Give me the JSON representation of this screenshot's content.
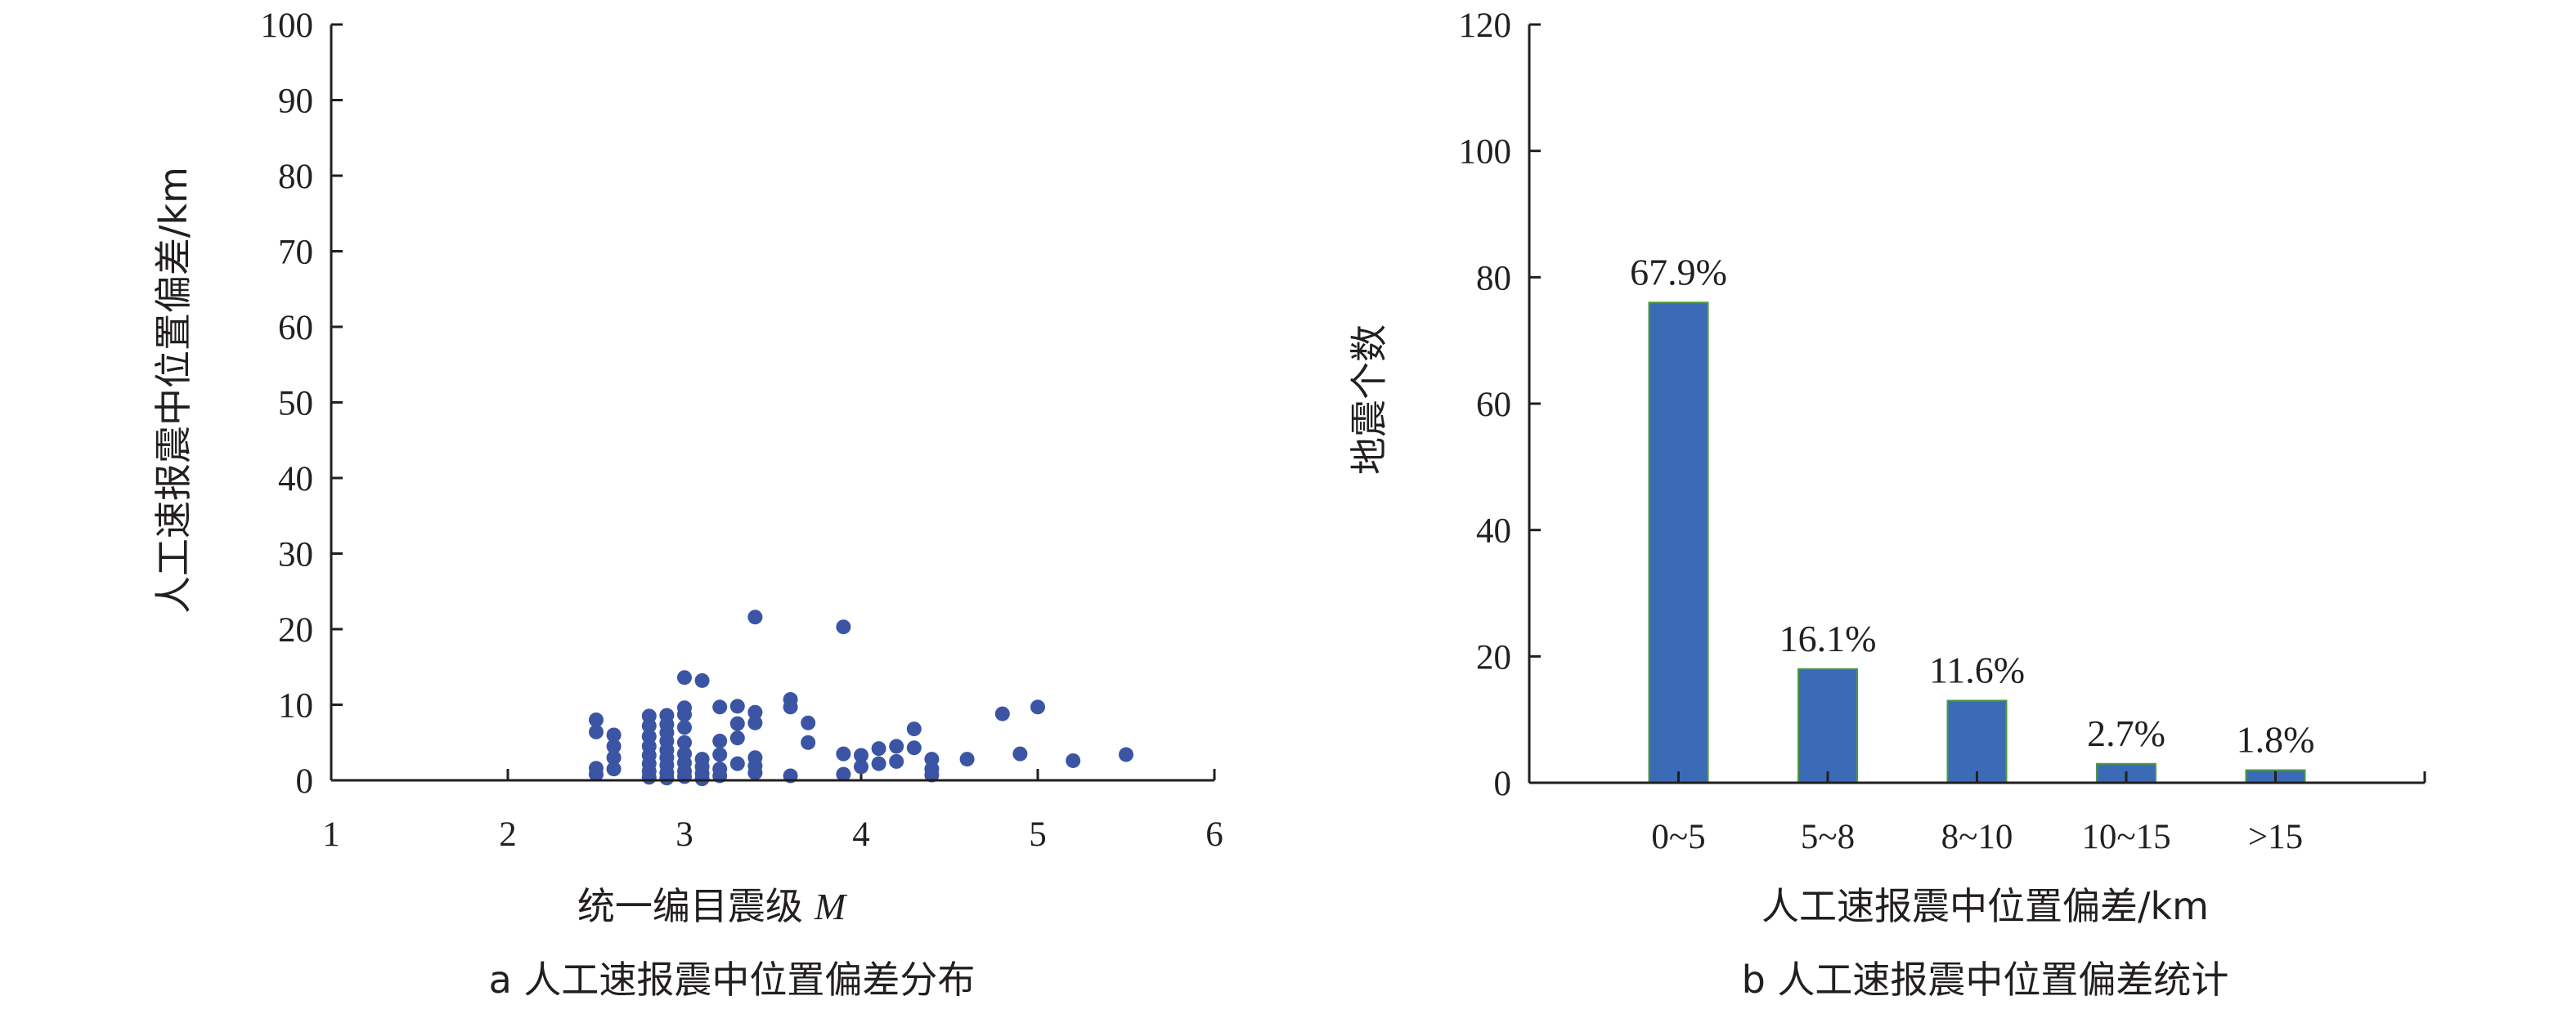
{
  "colors": {
    "axis": "#231f20",
    "point": "#3b55a4",
    "bar": "#3b6bb6",
    "bar_edge": "#4e9a3c"
  },
  "chart_data": [
    {
      "type": "scatter",
      "title": "",
      "caption": "a 人工速报震中位置偏差分布",
      "xlabel": "统一编目震级",
      "xlabel_var": "M",
      "ylabel": "人工速报震中位置偏差/km",
      "xlim": [
        1,
        6
      ],
      "ylim": [
        0,
        100
      ],
      "xticks": [
        "1",
        "2",
        "3",
        "4",
        "5",
        "6"
      ],
      "yticks": [
        "0",
        "10",
        "20",
        "30",
        "40",
        "50",
        "60",
        "70",
        "80",
        "90",
        "100"
      ],
      "grid": false,
      "points": [
        {
          "x": 2.5,
          "y": 8.0
        },
        {
          "x": 2.5,
          "y": 6.4
        },
        {
          "x": 2.5,
          "y": 1.6
        },
        {
          "x": 2.5,
          "y": 0.8
        },
        {
          "x": 2.6,
          "y": 6.0
        },
        {
          "x": 2.6,
          "y": 4.5
        },
        {
          "x": 2.6,
          "y": 3.0
        },
        {
          "x": 2.6,
          "y": 1.5
        },
        {
          "x": 2.8,
          "y": 8.5
        },
        {
          "x": 2.8,
          "y": 7.2
        },
        {
          "x": 2.8,
          "y": 5.8
        },
        {
          "x": 2.8,
          "y": 4.5
        },
        {
          "x": 2.8,
          "y": 3.3
        },
        {
          "x": 2.8,
          "y": 2.2
        },
        {
          "x": 2.8,
          "y": 1.2
        },
        {
          "x": 2.8,
          "y": 0.4
        },
        {
          "x": 2.9,
          "y": 8.6
        },
        {
          "x": 2.9,
          "y": 7.4
        },
        {
          "x": 2.9,
          "y": 6.3
        },
        {
          "x": 2.9,
          "y": 5.2
        },
        {
          "x": 2.9,
          "y": 4.0
        },
        {
          "x": 2.9,
          "y": 3.0
        },
        {
          "x": 2.9,
          "y": 2.0
        },
        {
          "x": 2.9,
          "y": 1.0
        },
        {
          "x": 2.9,
          "y": 0.3
        },
        {
          "x": 3.0,
          "y": 13.6
        },
        {
          "x": 3.0,
          "y": 9.6
        },
        {
          "x": 3.0,
          "y": 8.7
        },
        {
          "x": 3.0,
          "y": 7.0
        },
        {
          "x": 3.0,
          "y": 5.0
        },
        {
          "x": 3.0,
          "y": 3.5
        },
        {
          "x": 3.0,
          "y": 2.3
        },
        {
          "x": 3.0,
          "y": 1.2
        },
        {
          "x": 3.0,
          "y": 0.5
        },
        {
          "x": 3.1,
          "y": 13.2
        },
        {
          "x": 3.1,
          "y": 2.8
        },
        {
          "x": 3.1,
          "y": 1.8
        },
        {
          "x": 3.1,
          "y": 0.9
        },
        {
          "x": 3.1,
          "y": 0.2
        },
        {
          "x": 3.2,
          "y": 9.7
        },
        {
          "x": 3.2,
          "y": 5.2
        },
        {
          "x": 3.2,
          "y": 3.4
        },
        {
          "x": 3.2,
          "y": 1.5
        },
        {
          "x": 3.2,
          "y": 0.6
        },
        {
          "x": 3.3,
          "y": 9.8
        },
        {
          "x": 3.3,
          "y": 7.5
        },
        {
          "x": 3.3,
          "y": 5.6
        },
        {
          "x": 3.3,
          "y": 2.2
        },
        {
          "x": 3.4,
          "y": 21.6
        },
        {
          "x": 3.4,
          "y": 9.0
        },
        {
          "x": 3.4,
          "y": 7.6
        },
        {
          "x": 3.4,
          "y": 3.0
        },
        {
          "x": 3.4,
          "y": 1.9
        },
        {
          "x": 3.4,
          "y": 1.0
        },
        {
          "x": 3.6,
          "y": 10.7
        },
        {
          "x": 3.6,
          "y": 9.7
        },
        {
          "x": 3.6,
          "y": 0.6
        },
        {
          "x": 3.7,
          "y": 7.6
        },
        {
          "x": 3.7,
          "y": 5.0
        },
        {
          "x": 3.9,
          "y": 20.3
        },
        {
          "x": 3.9,
          "y": 3.5
        },
        {
          "x": 3.9,
          "y": 0.8
        },
        {
          "x": 4.0,
          "y": 3.3
        },
        {
          "x": 4.0,
          "y": 1.8
        },
        {
          "x": 4.1,
          "y": 4.2
        },
        {
          "x": 4.1,
          "y": 2.2
        },
        {
          "x": 4.2,
          "y": 4.5
        },
        {
          "x": 4.2,
          "y": 2.5
        },
        {
          "x": 4.3,
          "y": 6.8
        },
        {
          "x": 4.3,
          "y": 4.3
        },
        {
          "x": 4.4,
          "y": 2.8
        },
        {
          "x": 4.4,
          "y": 1.5
        },
        {
          "x": 4.4,
          "y": 0.7
        },
        {
          "x": 4.6,
          "y": 2.8
        },
        {
          "x": 4.8,
          "y": 8.8
        },
        {
          "x": 4.9,
          "y": 3.5
        },
        {
          "x": 5.0,
          "y": 9.7
        },
        {
          "x": 5.2,
          "y": 2.6
        },
        {
          "x": 5.5,
          "y": 3.4
        }
      ]
    },
    {
      "type": "bar",
      "title": "",
      "caption": "b 人工速报震中位置偏差统计",
      "xlabel": "人工速报震中位置偏差/km",
      "ylabel": "地震个数",
      "ylim": [
        0,
        120
      ],
      "yticks": [
        "0",
        "20",
        "40",
        "60",
        "80",
        "100",
        "120"
      ],
      "categories": [
        "0~5",
        "5~8",
        "8~10",
        "10~15",
        ">15"
      ],
      "values": [
        76,
        18,
        13,
        3,
        2
      ],
      "data_labels": [
        "67.9%",
        "16.1%",
        "11.6%",
        "2.7%",
        "1.8%"
      ],
      "grid": false
    }
  ]
}
